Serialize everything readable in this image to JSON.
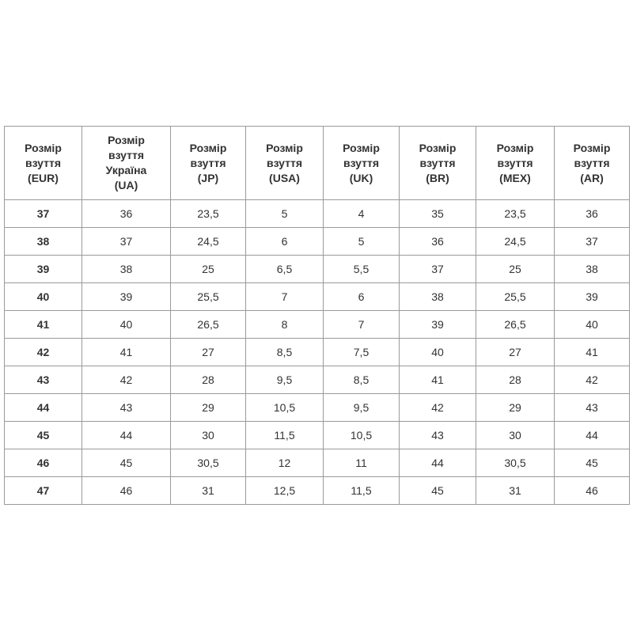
{
  "table": {
    "headers": [
      [
        "Розмір",
        "взуття",
        "(EUR)"
      ],
      [
        "Розмір",
        "взуття",
        "Україна",
        "(UA)"
      ],
      [
        "Розмір",
        "взуття",
        "(JP)"
      ],
      [
        "Розмір",
        "взуття",
        "(USA)"
      ],
      [
        "Розмір",
        "взуття",
        "(UK)"
      ],
      [
        "Розмір",
        "взуття",
        "(BR)"
      ],
      [
        "Розмір",
        "взуття",
        "(MEX)"
      ],
      [
        "Розмір",
        "взуття",
        "(AR)"
      ]
    ],
    "rows": [
      [
        "37",
        "36",
        "23,5",
        "5",
        "4",
        "35",
        "23,5",
        "36"
      ],
      [
        "38",
        "37",
        "24,5",
        "6",
        "5",
        "36",
        "24,5",
        "37"
      ],
      [
        "39",
        "38",
        "25",
        "6,5",
        "5,5",
        "37",
        "25",
        "38"
      ],
      [
        "40",
        "39",
        "25,5",
        "7",
        "6",
        "38",
        "25,5",
        "39"
      ],
      [
        "41",
        "40",
        "26,5",
        "8",
        "7",
        "39",
        "26,5",
        "40"
      ],
      [
        "42",
        "41",
        "27",
        "8,5",
        "7,5",
        "40",
        "27",
        "41"
      ],
      [
        "43",
        "42",
        "28",
        "9,5",
        "8,5",
        "41",
        "28",
        "42"
      ],
      [
        "44",
        "43",
        "29",
        "10,5",
        "9,5",
        "42",
        "29",
        "43"
      ],
      [
        "45",
        "44",
        "30",
        "11,5",
        "10,5",
        "43",
        "30",
        "44"
      ],
      [
        "46",
        "45",
        "30,5",
        "12",
        "11",
        "44",
        "30,5",
        "45"
      ],
      [
        "47",
        "46",
        "31",
        "12,5",
        "11,5",
        "45",
        "31",
        "46"
      ]
    ]
  }
}
